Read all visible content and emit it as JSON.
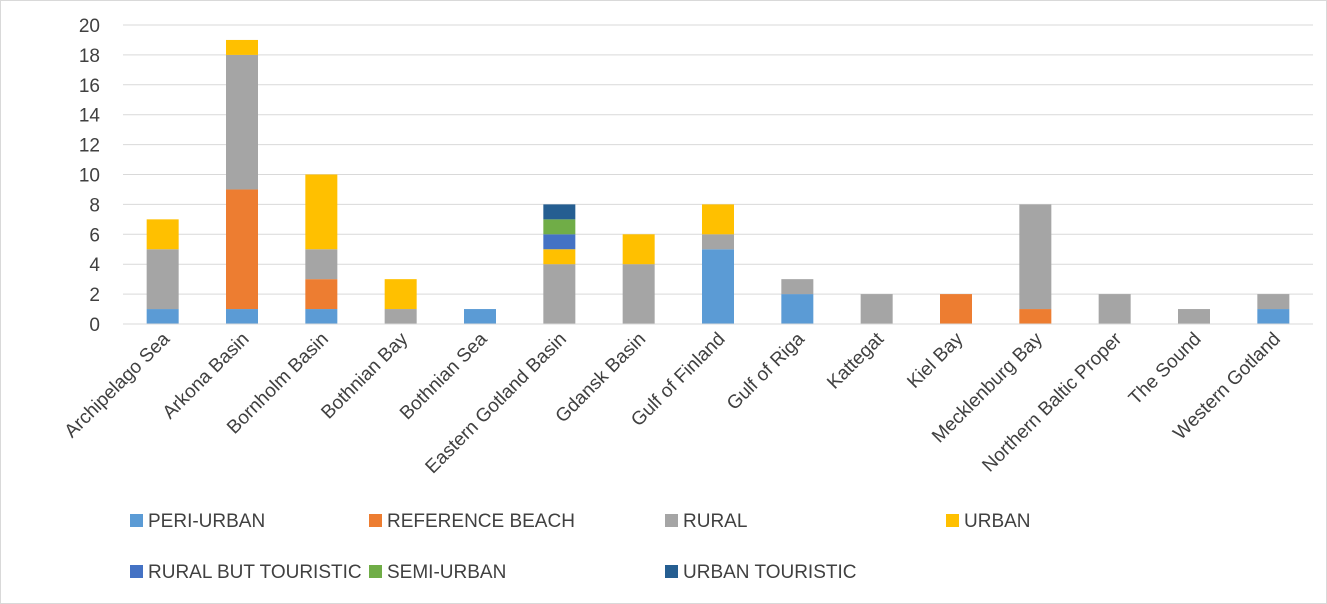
{
  "chart_data": {
    "type": "bar",
    "stacked": true,
    "categories": [
      "Archipelago Sea",
      "Arkona Basin",
      "Bornholm Basin",
      "Bothnian Bay",
      "Bothnian Sea",
      "Eastern Gotland Basin",
      "Gdansk Basin",
      "Gulf of Finland",
      "Gulf of Riga",
      "Kattegat",
      "Kiel Bay",
      "Mecklenburg Bay",
      "Northern Baltic Proper",
      "The Sound",
      "Western Gotland"
    ],
    "series": [
      {
        "name": "PERI-URBAN",
        "color": "#5B9BD5",
        "values": [
          1,
          1,
          1,
          0,
          1,
          0,
          0,
          5,
          2,
          0,
          0,
          0,
          0,
          0,
          1
        ]
      },
      {
        "name": "REFERENCE BEACH",
        "color": "#ED7D31",
        "values": [
          0,
          8,
          2,
          0,
          0,
          0,
          0,
          0,
          0,
          0,
          2,
          1,
          0,
          0,
          0
        ]
      },
      {
        "name": "RURAL",
        "color": "#A5A5A5",
        "values": [
          4,
          9,
          2,
          1,
          0,
          4,
          4,
          1,
          1,
          2,
          0,
          7,
          2,
          1,
          1
        ]
      },
      {
        "name": "URBAN",
        "color": "#FFC000",
        "values": [
          2,
          1,
          5,
          2,
          0,
          1,
          2,
          2,
          0,
          0,
          0,
          0,
          0,
          0,
          0
        ]
      },
      {
        "name": "RURAL BUT TOURISTIC",
        "color": "#4472C4",
        "values": [
          0,
          0,
          0,
          0,
          0,
          1,
          0,
          0,
          0,
          0,
          0,
          0,
          0,
          0,
          0
        ]
      },
      {
        "name": "SEMI-URBAN",
        "color": "#70AD47",
        "values": [
          0,
          0,
          0,
          0,
          0,
          1,
          0,
          0,
          0,
          0,
          0,
          0,
          0,
          0,
          0
        ]
      },
      {
        "name": "URBAN TOURISTIC",
        "color": "#255E91",
        "values": [
          0,
          0,
          0,
          0,
          0,
          1,
          0,
          0,
          0,
          0,
          0,
          0,
          0,
          0,
          0
        ]
      }
    ],
    "yticks": [
      "0",
      "2",
      "4",
      "6",
      "8",
      "10",
      "12",
      "14",
      "16",
      "18",
      "20"
    ],
    "ylim": [
      0,
      20
    ],
    "grid": true,
    "legend_position": "bottom"
  }
}
